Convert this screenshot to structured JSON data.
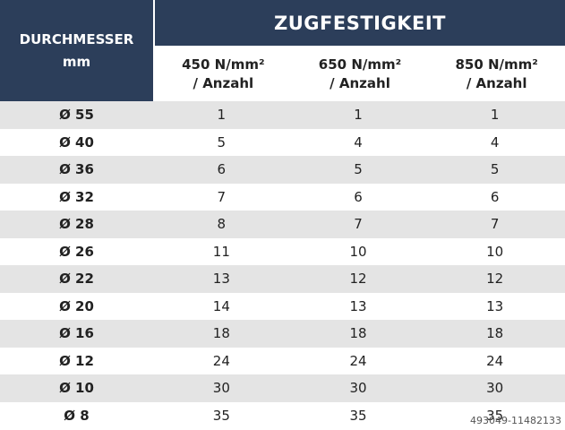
{
  "header": {
    "left_line1": "DURCHMESSER",
    "left_line2": "mm",
    "group_title": "ZUGFESTIGKEIT",
    "columns": [
      {
        "line1": "450 N/mm²",
        "line2": "/ Anzahl"
      },
      {
        "line1": "650 N/mm²",
        "line2": "/ Anzahl"
      },
      {
        "line1": "850 N/mm²",
        "line2": "/ Anzahl"
      }
    ]
  },
  "rows": [
    {
      "d": "Ø 55",
      "v": [
        "1",
        "1",
        "1"
      ]
    },
    {
      "d": "Ø 40",
      "v": [
        "5",
        "4",
        "4"
      ]
    },
    {
      "d": "Ø 36",
      "v": [
        "6",
        "5",
        "5"
      ]
    },
    {
      "d": "Ø 32",
      "v": [
        "7",
        "6",
        "6"
      ]
    },
    {
      "d": "Ø 28",
      "v": [
        "8",
        "7",
        "7"
      ]
    },
    {
      "d": "Ø 26",
      "v": [
        "11",
        "10",
        "10"
      ]
    },
    {
      "d": "Ø 22",
      "v": [
        "13",
        "12",
        "12"
      ]
    },
    {
      "d": "Ø 20",
      "v": [
        "14",
        "13",
        "13"
      ]
    },
    {
      "d": "Ø 16",
      "v": [
        "18",
        "18",
        "18"
      ]
    },
    {
      "d": "Ø 12",
      "v": [
        "24",
        "24",
        "24"
      ]
    },
    {
      "d": "Ø 10",
      "v": [
        "30",
        "30",
        "30"
      ]
    },
    {
      "d": "Ø 8",
      "v": [
        "35",
        "35",
        "35"
      ]
    }
  ],
  "watermark": "493049-11482133",
  "colors": {
    "header_bg": "#2c3e5a",
    "row_shade": "#e4e4e4"
  }
}
